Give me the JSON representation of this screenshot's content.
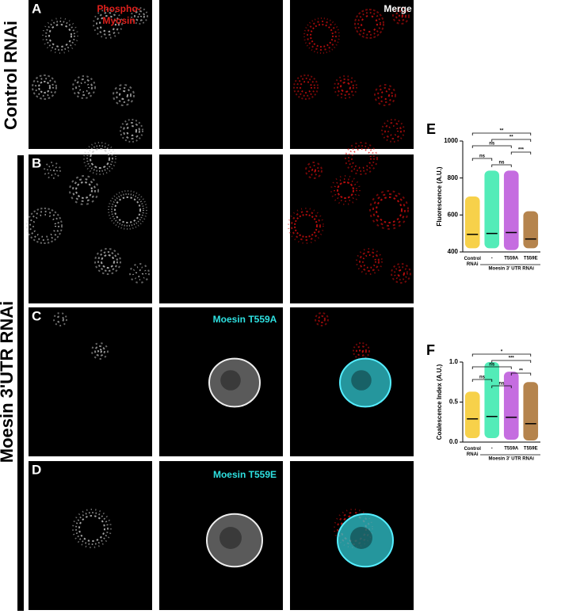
{
  "panels": {
    "letters": [
      "A",
      "B",
      "C",
      "D"
    ],
    "labels": {
      "phospho": [
        "Phospho-",
        "Myosin"
      ],
      "merge": "Merge",
      "t559a": "Moesin T559A",
      "t559e": "Moesin T559E"
    },
    "row_labels": {
      "control": "Control RNAi",
      "moesin": "Moesin 3'UTR RNAi"
    }
  },
  "chart_data": [
    {
      "type": "dot",
      "panel": "E",
      "y_label": "Fluorescence (A.U.)",
      "group_label": "Moesin 3' UTR RNAi",
      "categories": [
        "Control RNAi",
        "-",
        "T559A",
        "T559E"
      ],
      "colors": [
        "#f4c20d",
        "#19e6a0",
        "#b23cd6",
        "#9c5b12"
      ],
      "values": [
        495,
        500,
        505,
        470
      ],
      "min": [
        420,
        420,
        410,
        420
      ],
      "max": [
        700,
        840,
        840,
        620
      ],
      "ylim": [
        400,
        1000
      ],
      "yticks": [
        400,
        600,
        800,
        1000
      ],
      "comparisons": [
        {
          "pair": [
            0,
            3
          ],
          "label": "**"
        },
        {
          "pair": [
            1,
            3
          ],
          "label": "**"
        },
        {
          "pair": [
            0,
            2
          ],
          "label": "ns"
        },
        {
          "pair": [
            2,
            3
          ],
          "label": "***"
        },
        {
          "pair": [
            0,
            1
          ],
          "label": "ns"
        },
        {
          "pair": [
            1,
            2
          ],
          "label": "ns"
        }
      ]
    },
    {
      "type": "dot",
      "panel": "F",
      "y_label": "Coalescence Index (A.U.)",
      "group_label": "Moesin 3' UTR RNAi",
      "categories": [
        "Control RNAi",
        "-",
        "T559A",
        "T559E"
      ],
      "colors": [
        "#f4c20d",
        "#19e6a0",
        "#b23cd6",
        "#9c5b12"
      ],
      "values": [
        0.29,
        0.32,
        0.31,
        0.23
      ],
      "min": [
        0.05,
        0.05,
        0.03,
        0.02
      ],
      "max": [
        0.63,
        1.0,
        0.88,
        0.75
      ],
      "ylim": [
        0,
        1.0
      ],
      "yticks": [
        {
          "value": 0,
          "label": "0.0"
        },
        {
          "value": 0.5,
          "label": "0.5"
        },
        {
          "value": 1,
          "label": "1.0"
        }
      ],
      "comparisons": [
        {
          "pair": [
            0,
            3
          ],
          "label": "*"
        },
        {
          "pair": [
            1,
            3
          ],
          "label": "***"
        },
        {
          "pair": [
            0,
            2
          ],
          "label": "ns"
        },
        {
          "pair": [
            2,
            3
          ],
          "label": "**"
        },
        {
          "pair": [
            0,
            1
          ],
          "label": "ns"
        },
        {
          "pair": [
            1,
            2
          ],
          "label": "ns"
        }
      ]
    }
  ]
}
